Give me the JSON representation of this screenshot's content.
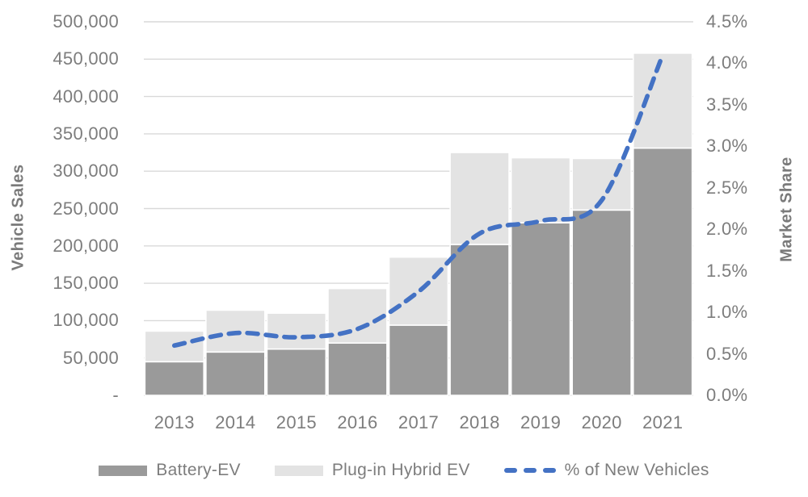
{
  "chart_data": {
    "type": "bar",
    "subtype": "stacked-bars-with-line",
    "categories": [
      "2013",
      "2014",
      "2015",
      "2016",
      "2017",
      "2018",
      "2019",
      "2020",
      "2021"
    ],
    "series": [
      {
        "name": "Battery-EV",
        "type": "bar",
        "color": "#9a9a9a",
        "values": [
          45000,
          58000,
          62000,
          70000,
          94000,
          202000,
          231000,
          248000,
          331000
        ]
      },
      {
        "name": "Plug-in Hybrid EV",
        "type": "bar",
        "color": "#e3e3e3",
        "values": [
          41000,
          56000,
          48000,
          73000,
          91000,
          123000,
          87000,
          69000,
          127000
        ]
      },
      {
        "name": "% of New Vehicles",
        "type": "line",
        "axis": "right",
        "color": "#4472c4",
        "dashed": true,
        "smooth": true,
        "values": [
          0.6,
          0.75,
          0.7,
          0.8,
          1.25,
          1.95,
          2.1,
          2.35,
          4.1
        ]
      }
    ],
    "left_axis": {
      "title": "Vehicle Sales",
      "min": 0,
      "max": 500000,
      "step": 50000,
      "tick_labels": [
        "-",
        "50,000",
        "100,000",
        "150,000",
        "200,000",
        "250,000",
        "300,000",
        "350,000",
        "400,000",
        "450,000",
        "500,000"
      ]
    },
    "right_axis": {
      "title": "Market Share",
      "min": 0,
      "max": 4.5,
      "step": 0.5,
      "tick_labels": [
        "0.0%",
        "0.5%",
        "1.0%",
        "1.5%",
        "2.0%",
        "2.5%",
        "3.0%",
        "3.5%",
        "4.0%",
        "4.5%"
      ]
    },
    "grid": true,
    "legend_position": "bottom"
  },
  "colors": {
    "grid": "#d9d9d9",
    "axis_text": "#7d7d7d",
    "bar_border": "#ffffff",
    "background": "#ffffff"
  }
}
